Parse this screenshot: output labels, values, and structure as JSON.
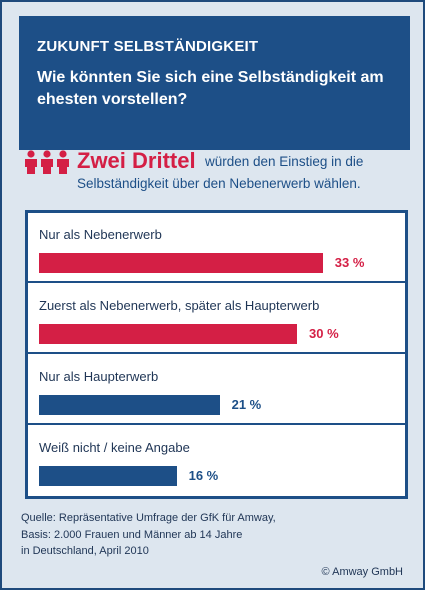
{
  "header": {
    "kicker": "ZUKUNFT SELBSTÄNDIGKEIT",
    "question": "Wie könnten Sie sich eine Selbständigkeit am ehesten vorstellen?"
  },
  "highlight": {
    "big": "Zwei Drittel",
    "rest_line1": "würden den Einstieg in die",
    "rest_line2": "Selbständigkeit über den Nebenerwerb wählen.",
    "icon": "three-people-icon"
  },
  "colors": {
    "header_bg": "#1d4f87",
    "accent_red": "#d41f45",
    "bar_blue": "#1d4f87",
    "background": "#dde6ef"
  },
  "chart_data": {
    "type": "bar",
    "orientation": "horizontal",
    "categories": [
      "Nur als Nebenerwerb",
      "Zuerst als Nebenerwerb, später als Haupterwerb",
      "Nur als Haupterwerb",
      "Weiß nicht / keine Angabe"
    ],
    "values": [
      33,
      30,
      21,
      16
    ],
    "value_labels": [
      "33 %",
      "30 %",
      "21 %",
      "16 %"
    ],
    "bar_colors": [
      "#d41f45",
      "#d41f45",
      "#1d4f87",
      "#1d4f87"
    ],
    "unit": "%"
  },
  "footer": {
    "source_line1": "Quelle: Repräsentative Umfrage der GfK für Amway,",
    "source_line2": "Basis: 2.000 Frauen und Männer ab 14 Jahre",
    "source_line3": "in Deutschland, April 2010",
    "copyright": "© Amway GmbH"
  }
}
